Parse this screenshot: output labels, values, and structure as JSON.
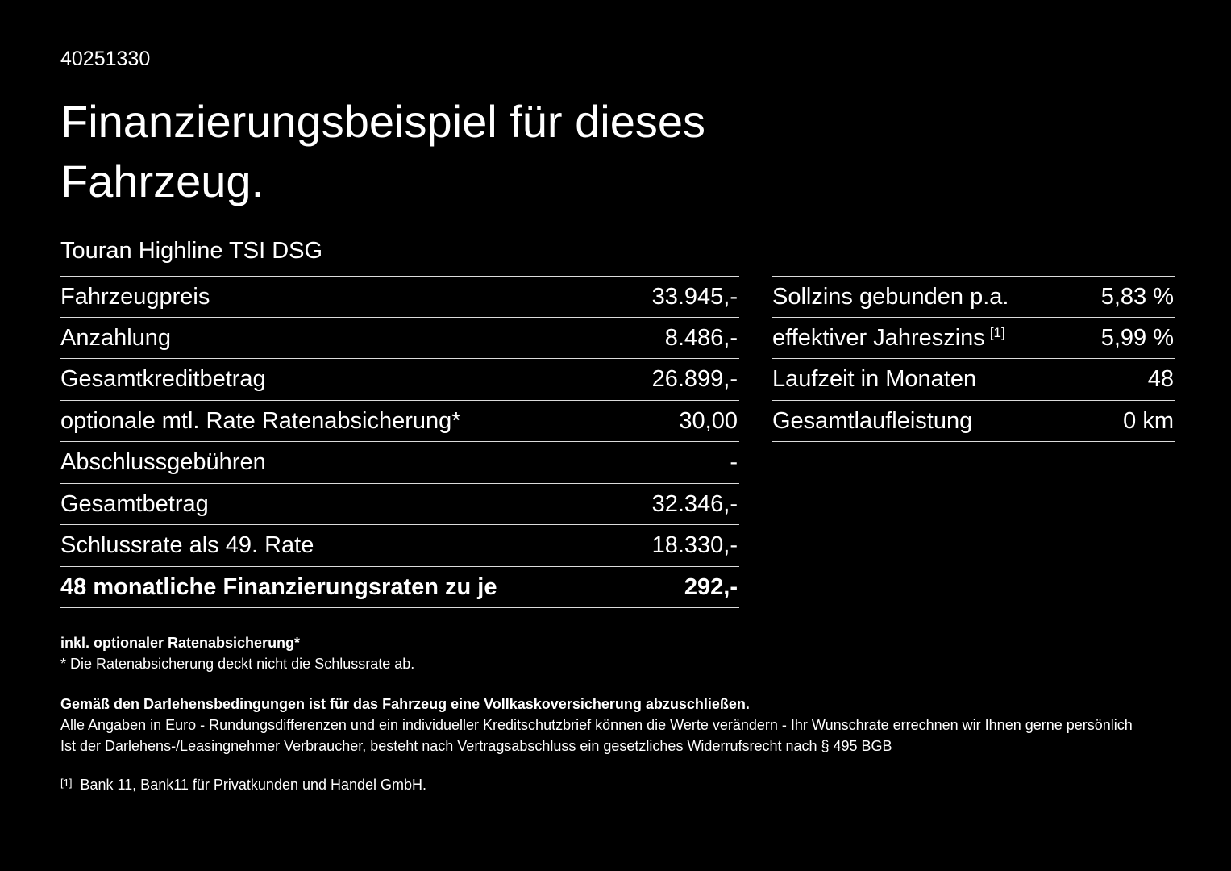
{
  "page": {
    "doc_id": "40251330",
    "title_line1": "Finanzierungsbeispiel für dieses",
    "title_line2": "Fahrzeug.",
    "vehicle": "Touran Highline TSI DSG"
  },
  "left_table": {
    "rows": [
      {
        "label": "Fahrzeugpreis",
        "value": "33.945,-"
      },
      {
        "label": "Anzahlung",
        "value": "8.486,-"
      },
      {
        "label": "Gesamtkreditbetrag",
        "value": "26.899,-"
      },
      {
        "label": "optionale mtl. Rate Ratenabsicherung*",
        "value": "30,00"
      },
      {
        "label": "Abschlussgebühren",
        "value": "-"
      },
      {
        "label": "Gesamtbetrag",
        "value": "32.346,-"
      },
      {
        "label": "Schlussrate als 49. Rate",
        "value": "18.330,-"
      },
      {
        "label": "48 monatliche Finanzierungsraten zu je",
        "value": "292,-"
      }
    ]
  },
  "right_table": {
    "rows": [
      {
        "label": "Sollzins gebunden p.a.",
        "value": "5,83 %"
      },
      {
        "label": "effektiver Jahreszins",
        "footnote_marker": "[1]",
        "value": "5,99 %"
      },
      {
        "label": "Laufzeit in Monaten",
        "value": "48"
      },
      {
        "label": "Gesamtlaufleistung",
        "value": "0 km"
      }
    ]
  },
  "footnotes": {
    "included_note": "inkl. optionaler Ratenabsicherung*",
    "asterisk_note": "* Die Ratenabsicherung deckt nicht die Schlussrate ab.",
    "insurance_note": "Gemäß den Darlehensbedingungen ist für das Fahrzeug eine Vollkaskoversicherung abzuschließen.",
    "disclaimer_line1": "Alle Angaben in Euro - Rundungsdifferenzen und ein individueller Kreditschutzbrief können die Werte verändern - Ihr Wunschrate errechnen wir Ihnen gerne persönlich",
    "disclaimer_line2": "Ist der Darlehens-/Leasingnehmer Verbraucher, besteht nach Vertragsabschluss ein gesetzliches Widerrufsrecht nach § 495 BGB",
    "bank_ref_marker": "[1]",
    "bank_ref_text": "Bank 11, Bank11 für Privatkunden und Handel GmbH."
  }
}
